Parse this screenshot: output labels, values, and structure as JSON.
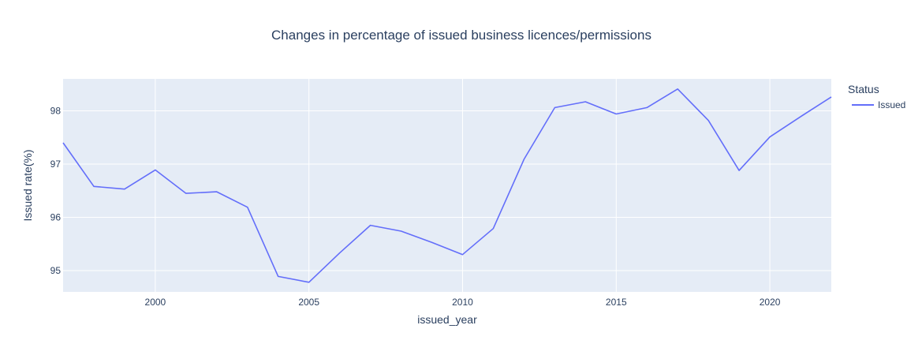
{
  "chart_data": {
    "type": "line",
    "title": "Changes in percentage of issued business licences/permissions",
    "xlabel": "issued_year",
    "ylabel": "Issued rate(%)",
    "xlim": [
      1997,
      2022
    ],
    "ylim": [
      94.6,
      98.6
    ],
    "x_ticks": [
      2000,
      2005,
      2010,
      2015,
      2020
    ],
    "y_ticks": [
      95,
      96,
      97,
      98
    ],
    "grid": true,
    "legend_title": "Status",
    "legend_position": "right",
    "colors": {
      "plot_bg": "#e5ecf6",
      "grid": "#ffffff",
      "line": "#636efa",
      "text": "#2a3f5f"
    },
    "series": [
      {
        "name": "Issued",
        "x": [
          1997,
          1998,
          1999,
          2000,
          2001,
          2002,
          2003,
          2004,
          2005,
          2006,
          2007,
          2008,
          2009,
          2010,
          2011,
          2012,
          2013,
          2014,
          2015,
          2016,
          2017,
          2018,
          2019,
          2020,
          2021,
          2022
        ],
        "values": [
          97.4,
          96.58,
          96.53,
          96.89,
          96.45,
          96.48,
          96.19,
          94.89,
          94.78,
          95.33,
          95.85,
          95.74,
          95.53,
          95.3,
          95.79,
          97.09,
          98.06,
          98.17,
          97.94,
          98.06,
          98.41,
          97.82,
          96.88,
          97.51,
          97.89,
          98.26
        ]
      }
    ]
  }
}
